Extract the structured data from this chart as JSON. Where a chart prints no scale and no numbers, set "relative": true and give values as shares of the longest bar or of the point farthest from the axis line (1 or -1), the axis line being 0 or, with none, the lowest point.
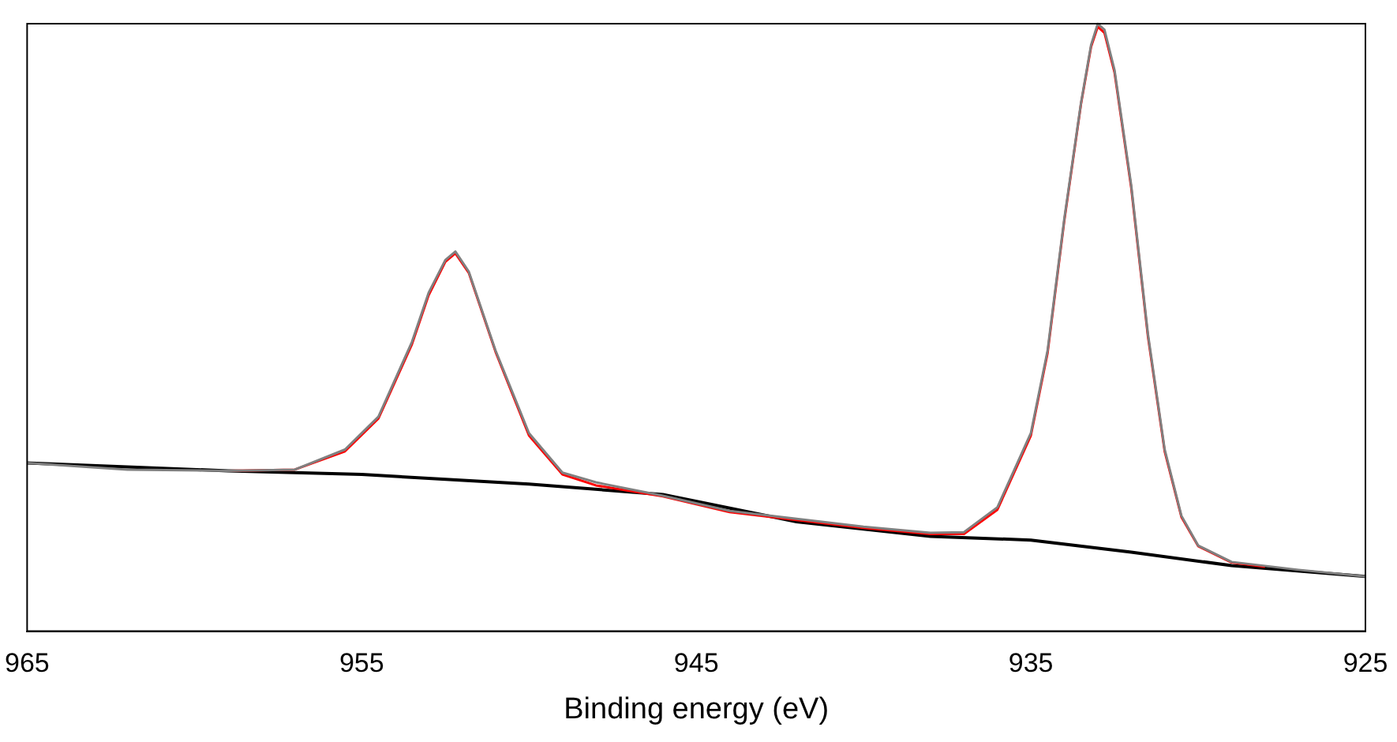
{
  "chart_data": {
    "type": "line",
    "xlabel": "Binding energy (eV)",
    "relative": true,
    "xlim": [
      965,
      925
    ],
    "xticks": [
      965,
      955,
      945,
      935,
      925
    ],
    "grid": false,
    "legend": false,
    "marker": "none",
    "line_style": "solid",
    "x": [
      965,
      962,
      959,
      957,
      955.5,
      954.5,
      953.5,
      953,
      952.5,
      952.2,
      951.8,
      951,
      950,
      949,
      948,
      946,
      944,
      942,
      940,
      938,
      937,
      936,
      935,
      934.5,
      934,
      933.5,
      933.2,
      933,
      932.8,
      932.5,
      932,
      931.5,
      931,
      930.5,
      930,
      929,
      927,
      925
    ],
    "series": [
      {
        "color": "#808080",
        "values": [
          0.277,
          0.266,
          0.264,
          0.266,
          0.299,
          0.353,
          0.476,
          0.557,
          0.611,
          0.625,
          0.592,
          0.462,
          0.326,
          0.261,
          0.245,
          0.223,
          0.198,
          0.185,
          0.172,
          0.162,
          0.163,
          0.204,
          0.326,
          0.462,
          0.679,
          0.87,
          0.965,
          1,
          0.99,
          0.924,
          0.734,
          0.489,
          0.299,
          0.19,
          0.141,
          0.114,
          0.101,
          0.09
        ]
      },
      {
        "color": "#ff0000",
        "x": [
          959,
          957,
          955.5,
          954.5,
          953.5,
          953,
          952.5,
          952.2,
          951.8,
          951,
          950,
          949,
          948,
          946,
          944,
          942,
          940,
          938,
          937,
          936,
          935,
          934.5,
          934,
          933.5,
          933.2,
          933,
          932.8,
          932.5,
          932,
          931.5,
          931,
          930.5,
          930,
          929,
          928
        ],
        "values": [
          0.264,
          0.266,
          0.296,
          0.35,
          0.472,
          0.553,
          0.608,
          0.622,
          0.59,
          0.46,
          0.322,
          0.258,
          0.24,
          0.222,
          0.196,
          0.183,
          0.17,
          0.16,
          0.16,
          0.2,
          0.322,
          0.458,
          0.676,
          0.868,
          0.962,
          0.995,
          0.985,
          0.92,
          0.73,
          0.485,
          0.296,
          0.188,
          0.14,
          0.113,
          0.106
        ]
      },
      {
        "color": "#000000",
        "x": [
          965,
          959,
          955,
          950,
          946,
          942,
          938,
          935,
          932,
          929,
          925
        ],
        "values": [
          0.277,
          0.264,
          0.258,
          0.242,
          0.225,
          0.18,
          0.156,
          0.15,
          0.13,
          0.108,
          0.09
        ]
      }
    ]
  }
}
